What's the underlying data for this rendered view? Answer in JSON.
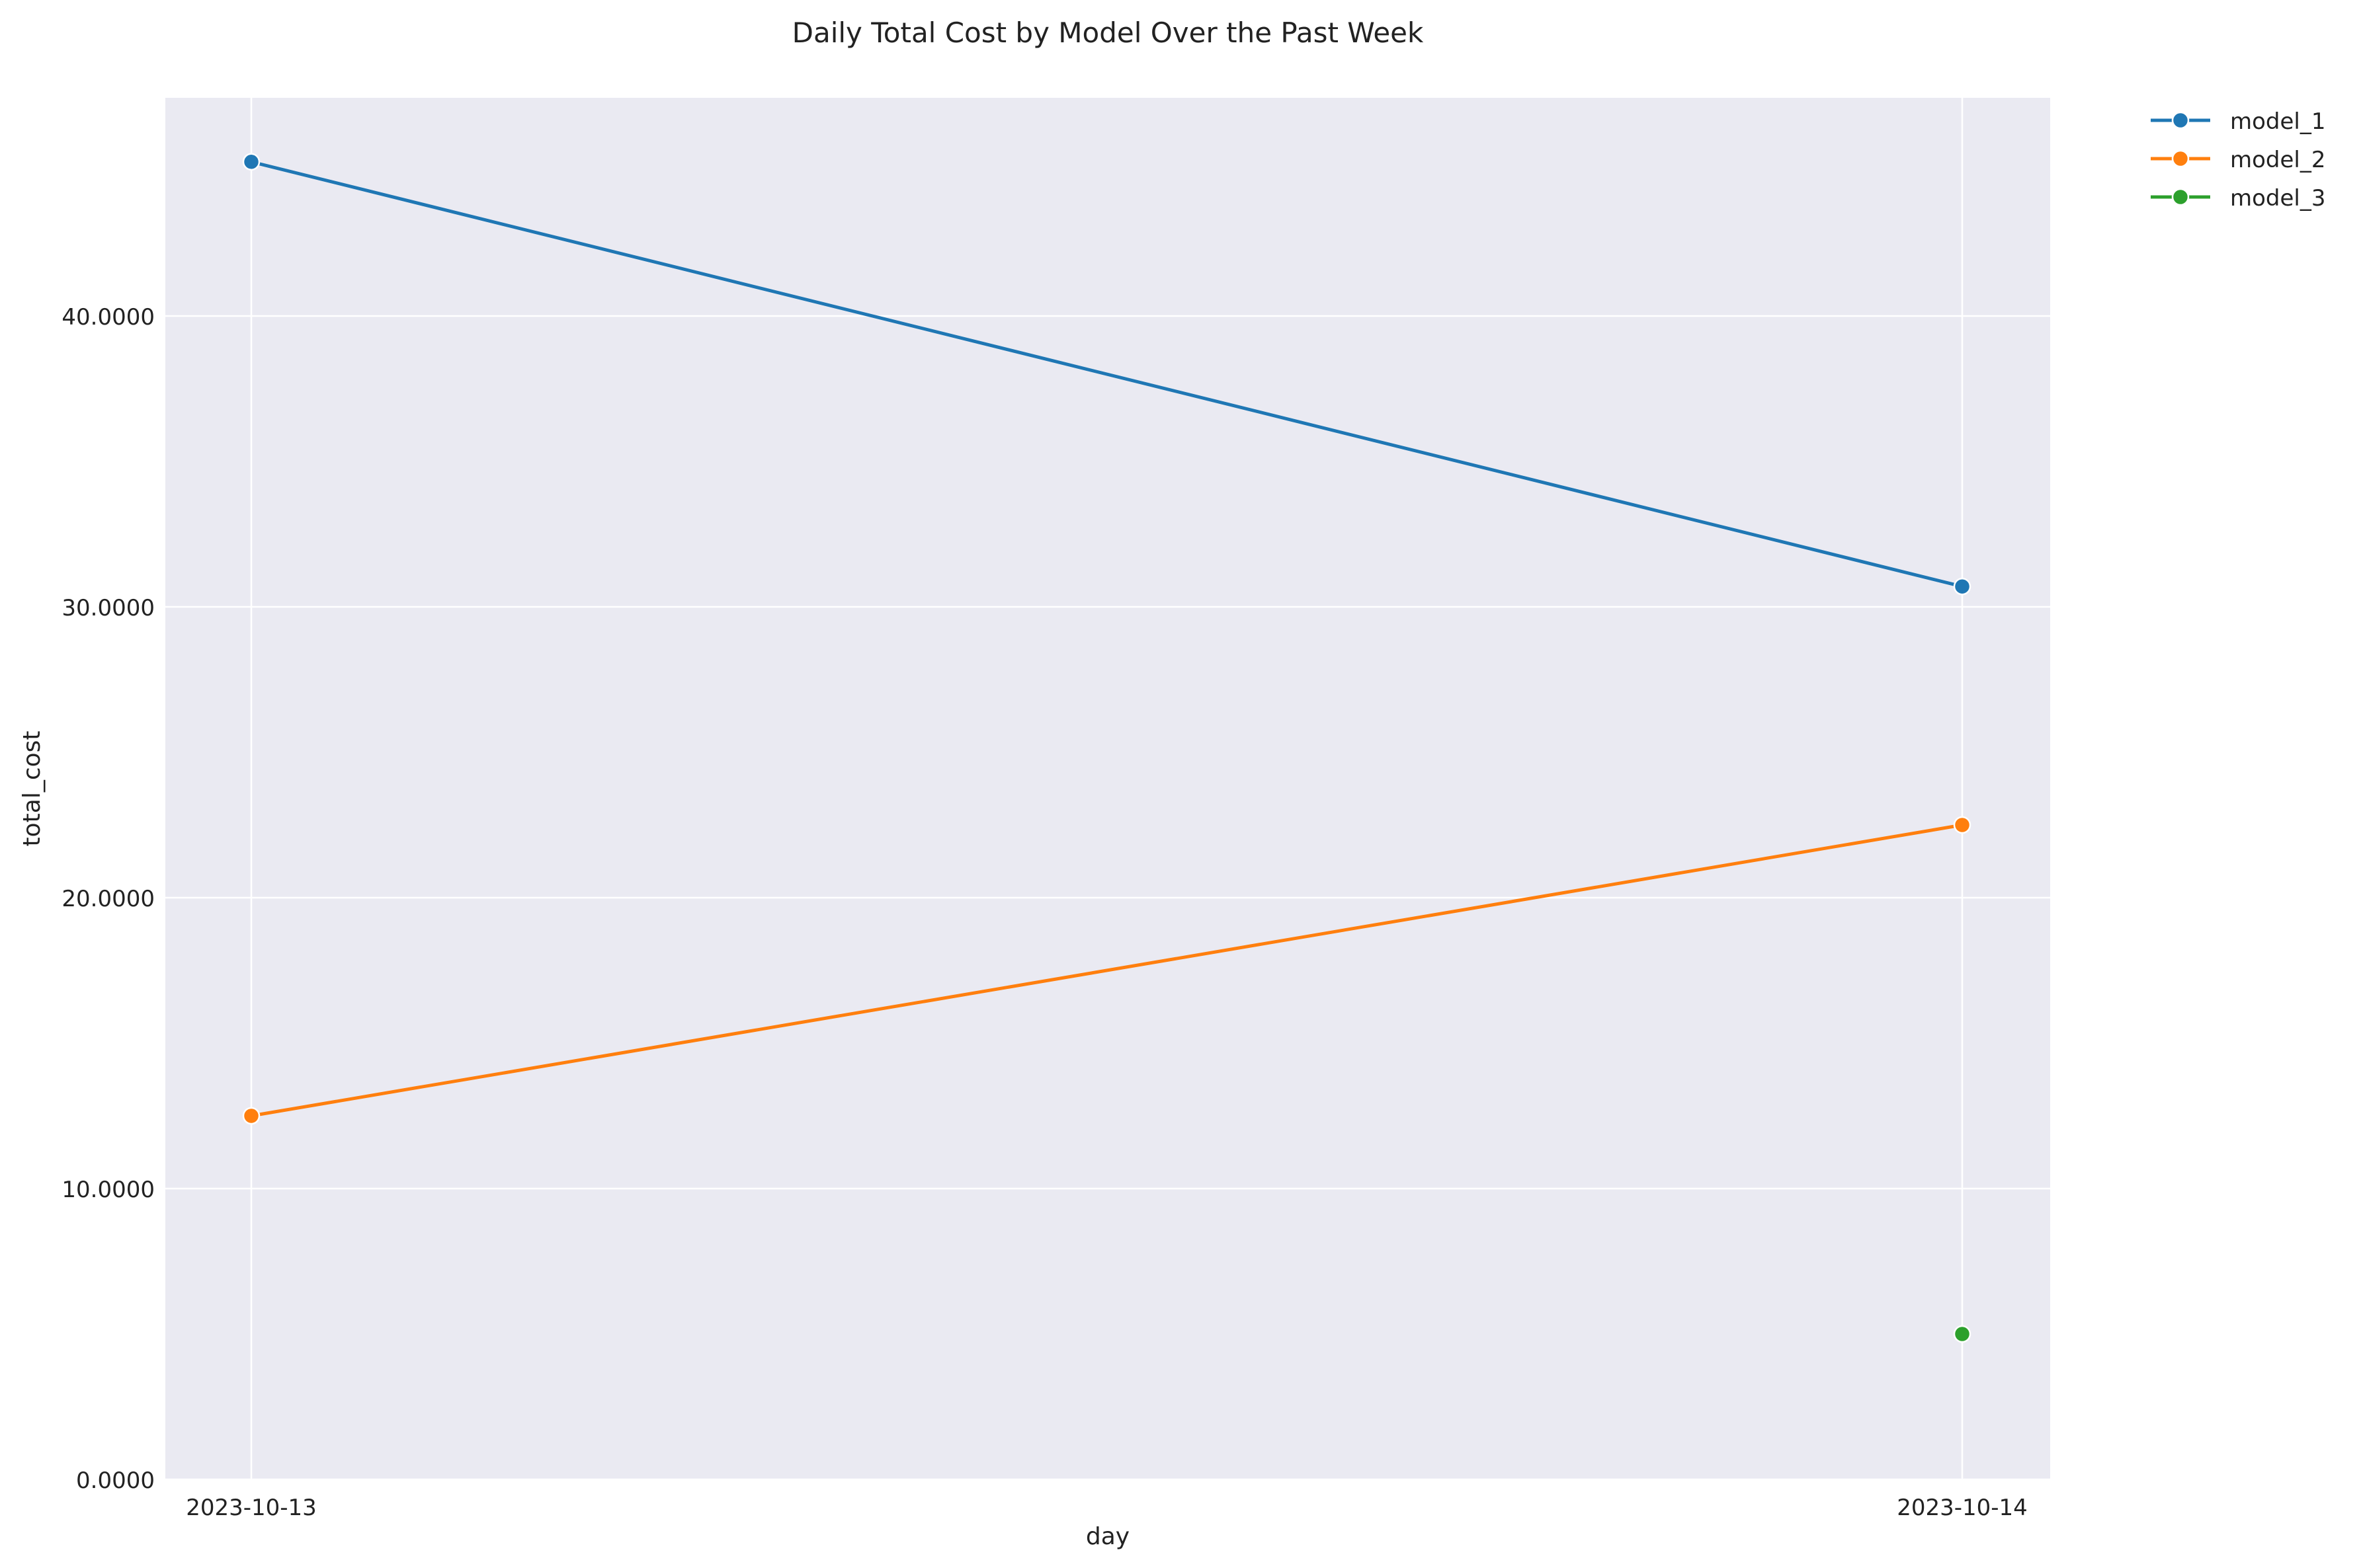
{
  "chart_data": {
    "type": "line",
    "title": "Daily Total Cost by Model Over the Past Week",
    "xlabel": "day",
    "ylabel": "total_cost",
    "x": [
      "2023-10-13",
      "2023-10-14"
    ],
    "ylim": [
      0,
      47.5
    ],
    "yticks": [
      0,
      10,
      20,
      30,
      40
    ],
    "ytick_labels": [
      "0.0000",
      "10.0000",
      "20.0000",
      "30.0000",
      "40.0000"
    ],
    "grid": true,
    "legend_position": "outside-top-right",
    "series": [
      {
        "name": "model_1",
        "color": "#1f77b4",
        "values": [
          45.3,
          30.7
        ]
      },
      {
        "name": "model_2",
        "color": "#ff7f0e",
        "values": [
          12.5,
          22.5
        ]
      },
      {
        "name": "model_3",
        "color": "#2ca02c",
        "values": [
          null,
          5.0
        ]
      }
    ]
  }
}
